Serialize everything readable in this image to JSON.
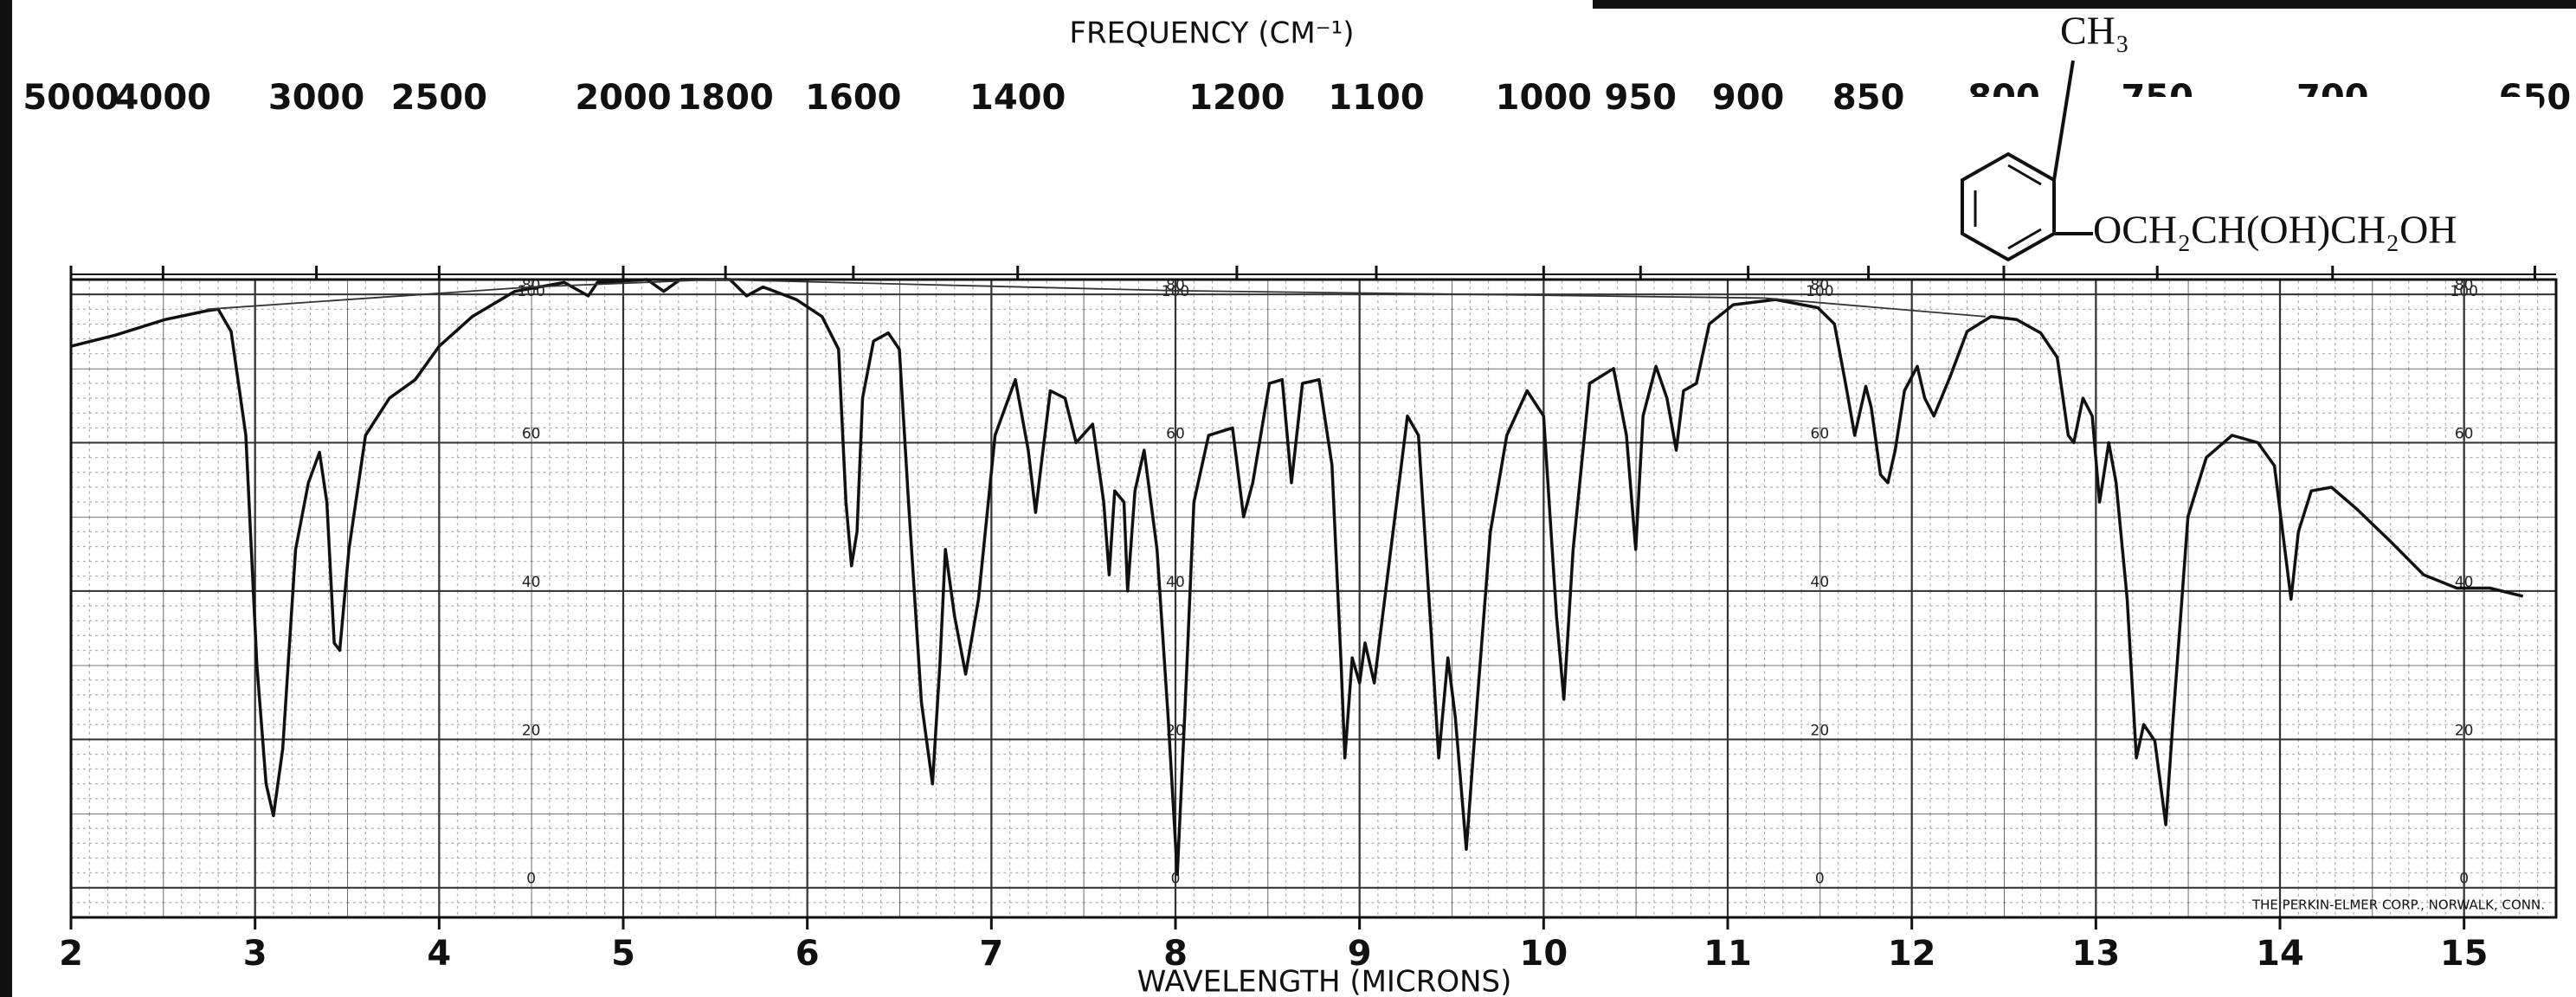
{
  "chart_data": {
    "type": "line",
    "title": "FREQUENCY (CM⁻¹)",
    "x_label": "WAVELENGTH (MICRONS)",
    "xlim": [
      2,
      15.5
    ],
    "xticks": [
      2,
      3,
      4,
      5,
      6,
      7,
      8,
      9,
      10,
      11,
      12,
      13,
      14,
      15
    ],
    "x2ticks": [
      5000,
      4000,
      3000,
      2500,
      2000,
      1800,
      1600,
      1400,
      1200,
      1100,
      1000,
      950,
      900,
      850,
      800,
      750,
      700,
      650
    ],
    "ylim": [
      -4,
      82
    ],
    "yticks": [
      0,
      20,
      40,
      60,
      80
    ],
    "top_label": "100",
    "grid": true,
    "series": [
      {
        "color": "#111111",
        "x": [
          2.0,
          2.24,
          2.51,
          2.74,
          2.8,
          2.87,
          2.95,
          3.01,
          3.06,
          3.1,
          3.15,
          3.22,
          3.29,
          3.35,
          3.39,
          3.43,
          3.46,
          3.51,
          3.6,
          3.73,
          3.87,
          4.0,
          4.18,
          4.41,
          4.68,
          4.81,
          4.86,
          5.13,
          5.22,
          5.31,
          5.58,
          5.67,
          5.76,
          5.94,
          6.08,
          6.17,
          6.21,
          6.24,
          6.27,
          6.3,
          6.36,
          6.44,
          6.5,
          6.55,
          6.62,
          6.68,
          6.72,
          6.75,
          6.8,
          6.86,
          6.93,
          7.02,
          7.13,
          7.2,
          7.24,
          7.27,
          7.32,
          7.4,
          7.46,
          7.55,
          7.61,
          7.64,
          7.67,
          7.72,
          7.74,
          7.78,
          7.83,
          7.9,
          7.96,
          8.01,
          8.05,
          8.1,
          8.18,
          8.31,
          8.37,
          8.42,
          8.51,
          8.58,
          8.63,
          8.69,
          8.78,
          8.85,
          8.9,
          8.92,
          8.96,
          9.0,
          9.03,
          9.08,
          9.17,
          9.26,
          9.32,
          9.39,
          9.43,
          9.48,
          9.52,
          9.58,
          9.64,
          9.71,
          9.8,
          9.91,
          10.0,
          10.07,
          10.11,
          10.16,
          10.25,
          10.38,
          10.45,
          10.5,
          10.54,
          10.61,
          10.67,
          10.72,
          10.76,
          10.83,
          10.9,
          11.03,
          11.26,
          11.49,
          11.58,
          11.64,
          11.69,
          11.75,
          11.78,
          11.83,
          11.87,
          11.91,
          11.96,
          12.03,
          12.07,
          12.12,
          12.21,
          12.3,
          12.43,
          12.57,
          12.7,
          12.79,
          12.85,
          12.88,
          12.93,
          12.98,
          13.02,
          13.07,
          13.11,
          13.17,
          13.22,
          13.26,
          13.32,
          13.38,
          13.42,
          13.5,
          13.6,
          13.74,
          13.88,
          13.97,
          14.06,
          14.1,
          14.17,
          14.28,
          14.42,
          14.6,
          14.78,
          14.96,
          15.14,
          15.32
        ],
        "values": [
          73,
          74.5,
          76.6,
          77.8,
          78,
          75,
          61,
          30,
          14,
          9.7,
          18.7,
          45.6,
          54.6,
          58.7,
          52,
          33,
          32,
          45.6,
          61,
          66,
          68.5,
          73,
          77,
          80.4,
          81.6,
          79.8,
          81.6,
          82,
          80.4,
          82,
          82,
          79.8,
          81,
          79.3,
          77,
          72.6,
          52,
          43.4,
          48,
          66,
          73.7,
          74.8,
          72.6,
          52,
          25,
          14,
          30,
          45.6,
          36.6,
          28.8,
          38.9,
          61,
          68.5,
          59,
          50.6,
          56.9,
          67,
          66,
          60,
          62.5,
          52,
          42.2,
          53.5,
          52,
          40,
          53.5,
          59,
          45.6,
          23,
          1.8,
          23,
          52,
          61,
          62,
          50,
          54.6,
          68,
          68.5,
          54.6,
          68,
          68.5,
          57,
          30,
          17.5,
          31,
          27.6,
          33,
          27.6,
          45.6,
          63.6,
          61,
          34,
          17.5,
          31,
          23,
          5.2,
          25.4,
          47.9,
          61,
          67,
          63.6,
          36.6,
          25.4,
          45.6,
          68,
          70,
          61,
          45.6,
          63.6,
          70.3,
          66,
          59,
          67,
          68,
          76,
          78.6,
          79.3,
          78.2,
          76,
          68,
          61,
          67.6,
          64.7,
          55.7,
          54.6,
          59,
          67,
          70.3,
          66,
          63.6,
          69,
          75,
          77,
          76.6,
          74.8,
          71.5,
          61,
          60,
          66,
          63.6,
          52,
          60,
          54.6,
          38.9,
          17.5,
          22,
          19.8,
          8.5,
          23,
          50,
          58,
          61,
          60,
          56.9,
          38.9,
          48,
          53.5,
          54,
          51,
          46.7,
          42.2,
          40.4,
          40.4,
          39.3
        ]
      },
      {
        "color": "#333333",
        "x": [
          2.74,
          4.5,
          5.5,
          8,
          11.2,
          12.4
        ],
        "values": [
          78,
          81,
          82,
          80.5,
          79.5,
          77
        ]
      }
    ],
    "molecule": {
      "substituent": "CH₃",
      "chain": "OCH₂CH(OH)CH₂OH"
    },
    "credit": "THE PERKIN-ELMER CORP., NORWALK, CONN."
  }
}
